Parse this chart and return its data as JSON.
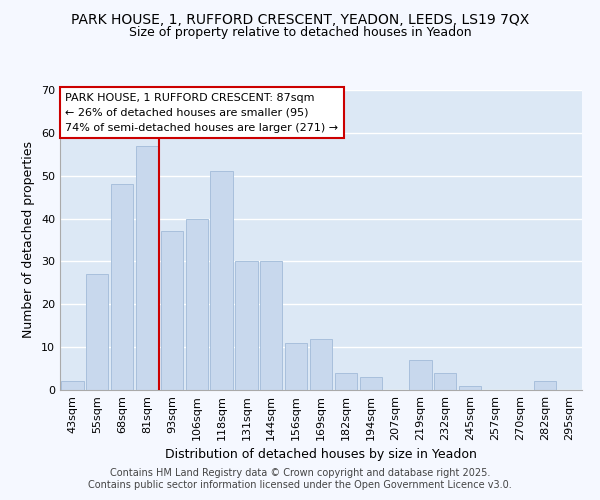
{
  "title": "PARK HOUSE, 1, RUFFORD CRESCENT, YEADON, LEEDS, LS19 7QX",
  "subtitle": "Size of property relative to detached houses in Yeadon",
  "xlabel": "Distribution of detached houses by size in Yeadon",
  "ylabel": "Number of detached properties",
  "bar_color": "#c8d8ed",
  "bar_edgecolor": "#a8c0dc",
  "categories": [
    "43sqm",
    "55sqm",
    "68sqm",
    "81sqm",
    "93sqm",
    "106sqm",
    "118sqm",
    "131sqm",
    "144sqm",
    "156sqm",
    "169sqm",
    "182sqm",
    "194sqm",
    "207sqm",
    "219sqm",
    "232sqm",
    "245sqm",
    "257sqm",
    "270sqm",
    "282sqm",
    "295sqm"
  ],
  "values": [
    2,
    27,
    48,
    57,
    37,
    40,
    51,
    30,
    30,
    11,
    12,
    4,
    3,
    0,
    7,
    4,
    1,
    0,
    0,
    2,
    0
  ],
  "ylim": [
    0,
    70
  ],
  "yticks": [
    0,
    10,
    20,
    30,
    40,
    50,
    60,
    70
  ],
  "vline_x": 3.5,
  "vline_color": "#cc0000",
  "annotation_title": "PARK HOUSE, 1 RUFFORD CRESCENT: 87sqm",
  "annotation_line1": "← 26% of detached houses are smaller (95)",
  "annotation_line2": "74% of semi-detached houses are larger (271) →",
  "annotation_border_color": "#cc0000",
  "footer1": "Contains HM Land Registry data © Crown copyright and database right 2025.",
  "footer2": "Contains public sector information licensed under the Open Government Licence v3.0.",
  "plot_bg_color": "#dce8f5",
  "figure_bg_color": "#f5f8ff",
  "grid_color": "#ffffff",
  "title_fontsize": 10,
  "subtitle_fontsize": 9,
  "xlabel_fontsize": 9,
  "ylabel_fontsize": 9,
  "tick_fontsize": 8,
  "footer_fontsize": 7,
  "ann_fontsize": 8
}
